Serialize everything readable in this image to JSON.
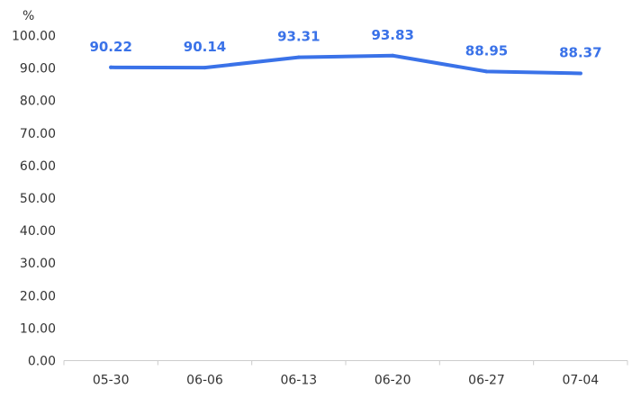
{
  "chart_data": {
    "type": "line",
    "title": "",
    "xlabel": "",
    "ylabel": "%",
    "categories": [
      "05-30",
      "06-06",
      "06-13",
      "06-20",
      "06-27",
      "07-04"
    ],
    "series": [
      {
        "values": [
          90.22,
          90.14,
          93.31,
          93.83,
          88.95,
          88.37
        ]
      }
    ],
    "data_labels": [
      "90.22",
      "90.14",
      "93.31",
      "93.83",
      "88.95",
      "88.37"
    ],
    "ylim": [
      0,
      100
    ],
    "y_ticks": [
      "0.00",
      "10.00",
      "20.00",
      "30.00",
      "40.00",
      "50.00",
      "60.00",
      "70.00",
      "80.00",
      "90.00",
      "100.00"
    ],
    "grid": false,
    "legend": "none",
    "colors": {
      "line": "#3a72e8",
      "axis": "#cccccc",
      "text": "#333333"
    }
  }
}
